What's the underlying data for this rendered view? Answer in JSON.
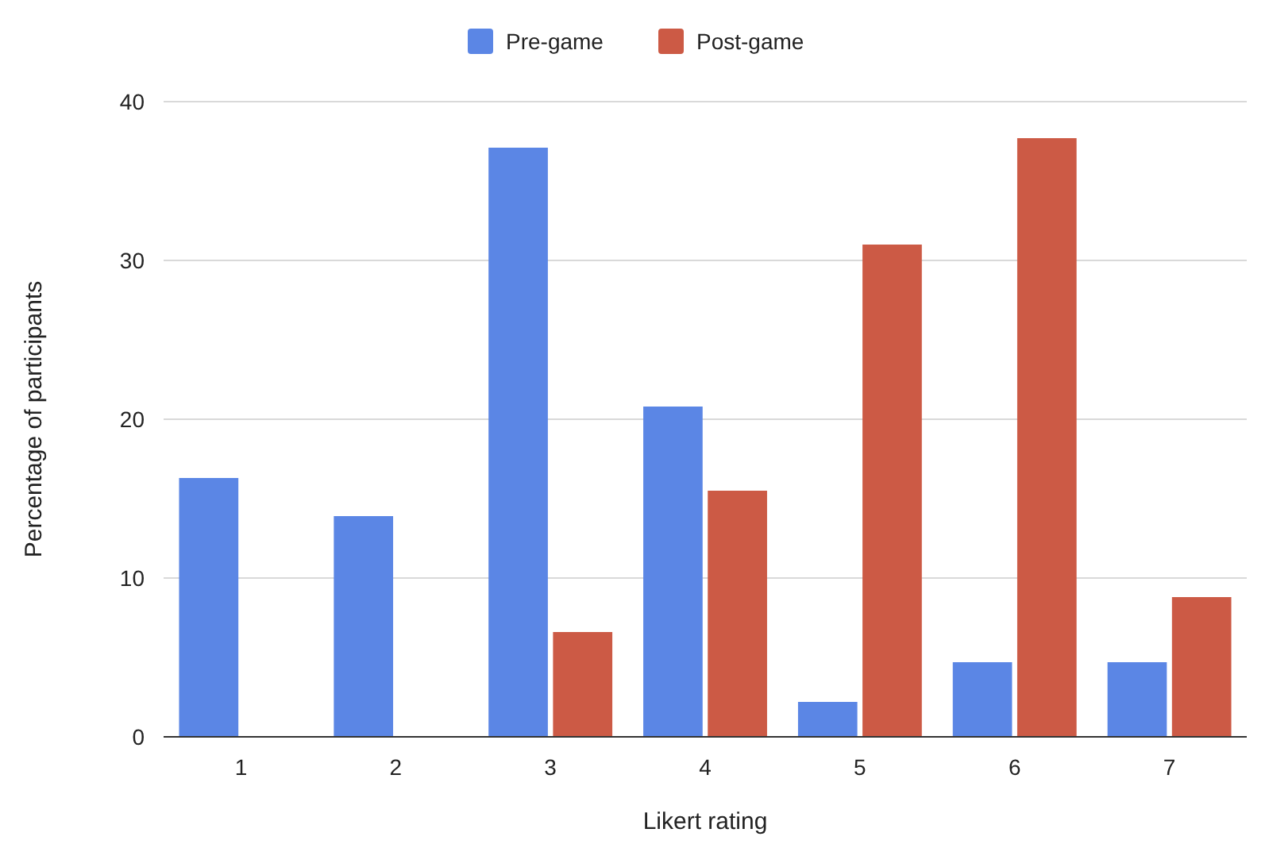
{
  "chart_data": {
    "type": "bar",
    "xlabel": "Likert rating",
    "ylabel": "Percentage of participants",
    "categories": [
      "1",
      "2",
      "3",
      "4",
      "5",
      "6",
      "7"
    ],
    "series": [
      {
        "name": "Pre-game",
        "color": "#5b86e5",
        "values": [
          16.3,
          13.9,
          37.1,
          20.8,
          2.2,
          4.7,
          4.7
        ]
      },
      {
        "name": "Post-game",
        "color": "#cc5a45",
        "values": [
          0,
          0,
          6.6,
          15.5,
          31.0,
          37.7,
          8.8
        ]
      }
    ],
    "ylim": [
      0,
      40
    ],
    "yticks": [
      0,
      10,
      20,
      30,
      40
    ],
    "grid": "y",
    "legend": "top"
  }
}
